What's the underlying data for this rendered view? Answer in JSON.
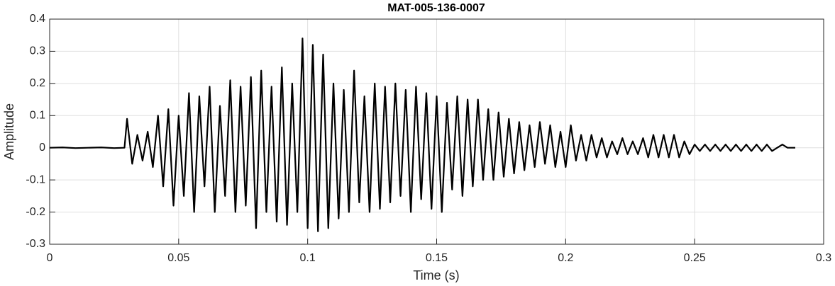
{
  "chart_data": {
    "type": "line",
    "title": "MAT-005-136-0007",
    "x_label": "Time (s)",
    "y_label": "Amplitude",
    "x": [
      0,
      0.005,
      0.01,
      0.015,
      0.02,
      0.025,
      0.029,
      0.03,
      0.032,
      0.034,
      0.036,
      0.038,
      0.04,
      0.042,
      0.044,
      0.046,
      0.048,
      0.05,
      0.052,
      0.054,
      0.056,
      0.058,
      0.06,
      0.062,
      0.064,
      0.066,
      0.068,
      0.07,
      0.072,
      0.074,
      0.076,
      0.078,
      0.08,
      0.082,
      0.084,
      0.086,
      0.088,
      0.09,
      0.092,
      0.094,
      0.096,
      0.098,
      0.1,
      0.102,
      0.104,
      0.106,
      0.108,
      0.11,
      0.112,
      0.114,
      0.116,
      0.118,
      0.12,
      0.122,
      0.124,
      0.126,
      0.128,
      0.13,
      0.132,
      0.134,
      0.136,
      0.138,
      0.14,
      0.142,
      0.144,
      0.146,
      0.148,
      0.15,
      0.152,
      0.154,
      0.156,
      0.158,
      0.16,
      0.162,
      0.164,
      0.166,
      0.168,
      0.17,
      0.172,
      0.174,
      0.176,
      0.178,
      0.18,
      0.182,
      0.184,
      0.186,
      0.188,
      0.19,
      0.192,
      0.194,
      0.196,
      0.198,
      0.2,
      0.202,
      0.204,
      0.206,
      0.208,
      0.21,
      0.212,
      0.214,
      0.216,
      0.218,
      0.22,
      0.222,
      0.224,
      0.226,
      0.228,
      0.23,
      0.232,
      0.234,
      0.236,
      0.238,
      0.24,
      0.242,
      0.244,
      0.246,
      0.248,
      0.25,
      0.252,
      0.254,
      0.256,
      0.258,
      0.26,
      0.262,
      0.264,
      0.266,
      0.268,
      0.27,
      0.272,
      0.274,
      0.276,
      0.278,
      0.28,
      0.282,
      0.284,
      0.286,
      0.289
    ],
    "series": [
      {
        "color": "#000000",
        "values": [
          0,
          0.001,
          -0.001,
          0,
          0.001,
          -0.001,
          0,
          0.09,
          -0.05,
          0.04,
          -0.04,
          0.05,
          -0.06,
          0.1,
          -0.12,
          0.12,
          -0.18,
          0.1,
          -0.15,
          0.17,
          -0.2,
          0.16,
          -0.12,
          0.19,
          -0.2,
          0.13,
          -0.15,
          0.21,
          -0.2,
          0.19,
          -0.18,
          0.22,
          -0.25,
          0.24,
          -0.2,
          0.19,
          -0.23,
          0.25,
          -0.24,
          0.2,
          -0.2,
          0.34,
          -0.25,
          0.32,
          -0.26,
          0.29,
          -0.25,
          0.2,
          -0.22,
          0.18,
          -0.2,
          0.24,
          -0.17,
          0.16,
          -0.2,
          0.2,
          -0.19,
          0.19,
          -0.17,
          0.2,
          -0.15,
          0.18,
          -0.2,
          0.19,
          -0.16,
          0.17,
          -0.19,
          0.16,
          -0.2,
          0.14,
          -0.13,
          0.16,
          -0.15,
          0.15,
          -0.12,
          0.15,
          -0.1,
          0.12,
          -0.1,
          0.11,
          -0.09,
          0.09,
          -0.08,
          0.08,
          -0.07,
          0.07,
          -0.06,
          0.08,
          -0.05,
          0.07,
          -0.06,
          0.05,
          -0.06,
          0.07,
          -0.04,
          0.04,
          -0.04,
          0.04,
          -0.03,
          0.03,
          -0.03,
          0.02,
          -0.02,
          0.03,
          -0.02,
          0.02,
          -0.02,
          0.03,
          -0.03,
          0.04,
          -0.03,
          0.04,
          -0.03,
          0.04,
          -0.03,
          0.02,
          -0.02,
          0.01,
          -0.01,
          0.01,
          -0.01,
          0.01,
          -0.01,
          0.01,
          -0.01,
          0.01,
          -0.01,
          0.01,
          -0.01,
          0.01,
          -0.01,
          0.01,
          -0.01,
          0,
          0.01,
          0,
          0
        ]
      }
    ],
    "xlim": [
      0,
      0.3
    ],
    "xticks": [
      0,
      0.05,
      0.1,
      0.15,
      0.2,
      0.25,
      0.3
    ],
    "ylim": [
      -0.3,
      0.4
    ],
    "yticks": [
      -0.3,
      -0.2,
      -0.1,
      0,
      0.1,
      0.2,
      0.3,
      0.4
    ],
    "grid": true
  }
}
